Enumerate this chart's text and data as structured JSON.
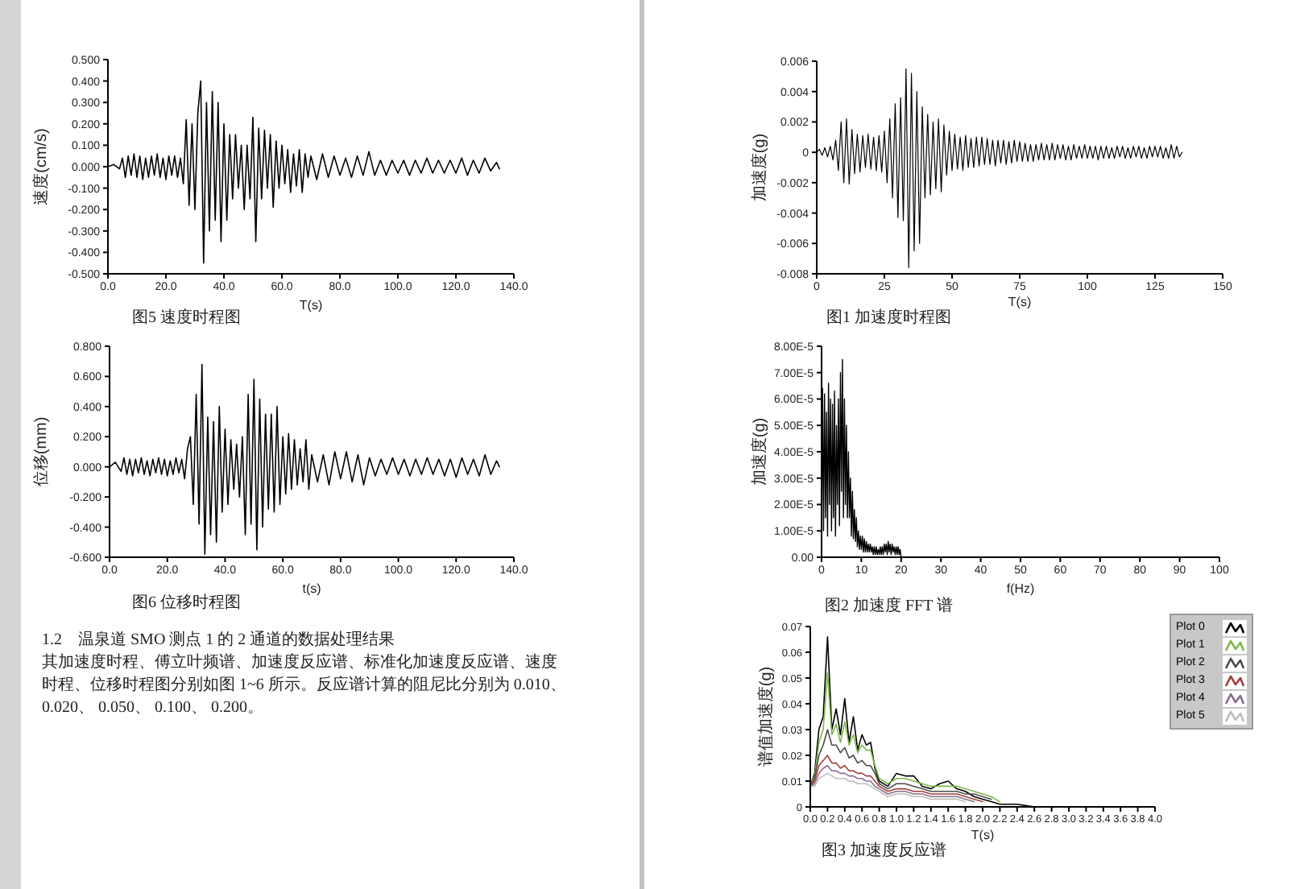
{
  "chart_data": [
    {
      "type": "line",
      "title": "图5 速度时程图",
      "xlabel": "T(s)",
      "ylabel": "速度(cm/s)",
      "xlim": [
        0,
        140
      ],
      "ylim": [
        -0.5,
        0.5
      ],
      "xticks": [
        {
          "value": 0,
          "label": "0.0"
        },
        {
          "value": 20,
          "label": "20.0"
        },
        {
          "value": 40,
          "label": "40.0"
        },
        {
          "value": 60,
          "label": "60.0"
        },
        {
          "value": 80,
          "label": "80.0"
        },
        {
          "value": 100,
          "label": "100.0"
        },
        {
          "value": 120,
          "label": "120.0"
        },
        {
          "value": 140,
          "label": "140.0"
        }
      ],
      "yticks": [
        {
          "value": -0.5,
          "label": "-0.500"
        },
        {
          "value": -0.4,
          "label": "-0.400"
        },
        {
          "value": -0.3,
          "label": "-0.300"
        },
        {
          "value": -0.2,
          "label": "-0.200"
        },
        {
          "value": -0.1,
          "label": "-0.100"
        },
        {
          "value": 0,
          "label": "0.000"
        },
        {
          "value": 0.1,
          "label": "0.100"
        },
        {
          "value": 0.2,
          "label": "0.200"
        },
        {
          "value": 0.3,
          "label": "0.300"
        },
        {
          "value": 0.4,
          "label": "0.400"
        },
        {
          "value": 0.5,
          "label": "0.500"
        }
      ],
      "x": [
        0,
        2,
        4,
        5,
        6,
        7,
        8,
        9,
        10,
        11,
        12,
        13,
        14,
        15,
        16,
        17,
        18,
        19,
        20,
        21,
        22,
        23,
        24,
        25,
        26,
        27,
        28,
        29,
        30,
        31,
        32,
        33,
        34,
        35,
        36,
        37,
        38,
        39,
        40,
        41,
        42,
        43,
        44,
        45,
        46,
        47,
        48,
        49,
        50,
        51,
        52,
        53,
        54,
        55,
        56,
        57,
        58,
        59,
        60,
        61,
        62,
        63,
        64,
        65,
        66,
        67,
        68,
        69,
        70,
        72,
        74,
        76,
        78,
        80,
        82,
        84,
        86,
        88,
        90,
        92,
        94,
        96,
        98,
        100,
        102,
        104,
        106,
        108,
        110,
        112,
        114,
        116,
        118,
        120,
        122,
        124,
        126,
        128,
        130,
        132,
        134,
        135
      ],
      "values": [
        0,
        0.01,
        -0.01,
        0.04,
        -0.05,
        0.05,
        -0.04,
        0.06,
        -0.05,
        0.05,
        -0.06,
        0.04,
        -0.05,
        0.05,
        -0.04,
        0.06,
        -0.05,
        0.04,
        -0.06,
        0.05,
        -0.04,
        0.05,
        -0.05,
        0.04,
        -0.08,
        0.22,
        -0.18,
        0.2,
        -0.2,
        0.25,
        0.4,
        -0.45,
        0.3,
        -0.3,
        0.35,
        -0.25,
        0.3,
        -0.35,
        0.2,
        -0.25,
        0.15,
        -0.15,
        0.15,
        -0.1,
        0.1,
        -0.2,
        0.1,
        -0.15,
        0.23,
        -0.35,
        0.18,
        -0.15,
        0.17,
        -0.1,
        0.15,
        -0.19,
        0.12,
        -0.1,
        0.1,
        -0.08,
        0.08,
        -0.12,
        0.06,
        -0.09,
        0.08,
        -0.12,
        0.06,
        -0.05,
        0.05,
        -0.06,
        0.06,
        -0.05,
        0.05,
        -0.04,
        0.04,
        -0.05,
        0.05,
        -0.04,
        0.07,
        -0.04,
        0.03,
        -0.04,
        0.03,
        -0.03,
        0.03,
        -0.04,
        0.03,
        -0.03,
        0.04,
        -0.03,
        0.03,
        -0.03,
        0.03,
        -0.03,
        0.04,
        -0.04,
        0.03,
        -0.03,
        0.04,
        -0.02,
        0.02,
        -0.01
      ],
      "color": "#000000"
    },
    {
      "type": "line",
      "title": "图6 位移时程图",
      "xlabel": "t(s)",
      "ylabel": "位移(mm)",
      "xlim": [
        0,
        140
      ],
      "ylim": [
        -0.6,
        0.8
      ],
      "xticks": [
        {
          "value": 0,
          "label": "0.0"
        },
        {
          "value": 20,
          "label": "20.0"
        },
        {
          "value": 40,
          "label": "40.0"
        },
        {
          "value": 60,
          "label": "60.0"
        },
        {
          "value": 80,
          "label": "80.0"
        },
        {
          "value": 100,
          "label": "100.0"
        },
        {
          "value": 120,
          "label": "120.0"
        },
        {
          "value": 140,
          "label": "140.0"
        }
      ],
      "yticks": [
        {
          "value": -0.6,
          "label": "-0.600"
        },
        {
          "value": -0.4,
          "label": "-0.400"
        },
        {
          "value": -0.2,
          "label": "-0.200"
        },
        {
          "value": 0,
          "label": "0.000"
        },
        {
          "value": 0.2,
          "label": "0.200"
        },
        {
          "value": 0.4,
          "label": "0.400"
        },
        {
          "value": 0.6,
          "label": "0.600"
        },
        {
          "value": 0.8,
          "label": "0.800"
        }
      ],
      "x": [
        0,
        2,
        4,
        5,
        6,
        7,
        8,
        9,
        10,
        11,
        12,
        13,
        14,
        15,
        16,
        17,
        18,
        19,
        20,
        21,
        22,
        23,
        24,
        25,
        26,
        27,
        28,
        29,
        30,
        31,
        32,
        33,
        34,
        35,
        36,
        37,
        38,
        39,
        40,
        41,
        42,
        43,
        44,
        45,
        46,
        47,
        48,
        49,
        50,
        51,
        52,
        53,
        54,
        55,
        56,
        57,
        58,
        59,
        60,
        61,
        62,
        63,
        64,
        65,
        66,
        67,
        68,
        69,
        70,
        72,
        74,
        76,
        78,
        80,
        82,
        84,
        86,
        88,
        90,
        92,
        94,
        96,
        98,
        100,
        102,
        104,
        106,
        108,
        110,
        112,
        114,
        116,
        118,
        120,
        122,
        124,
        126,
        128,
        130,
        132,
        134,
        135
      ],
      "values": [
        0,
        0.03,
        -0.03,
        0.06,
        -0.05,
        0.05,
        -0.06,
        0.05,
        -0.04,
        0.06,
        -0.05,
        0.04,
        -0.06,
        0.05,
        -0.04,
        0.06,
        -0.05,
        0.05,
        -0.06,
        0.04,
        -0.05,
        0.06,
        -0.04,
        0.05,
        -0.08,
        0.12,
        0.2,
        -0.25,
        0.48,
        -0.38,
        0.68,
        -0.58,
        0.33,
        -0.45,
        0.3,
        -0.5,
        0.4,
        -0.3,
        0.25,
        -0.25,
        0.18,
        -0.15,
        0.15,
        -0.2,
        0.2,
        -0.45,
        0.48,
        -0.38,
        0.58,
        -0.55,
        0.45,
        -0.4,
        0.35,
        -0.28,
        0.35,
        -0.3,
        0.4,
        -0.25,
        0.2,
        -0.18,
        0.22,
        -0.15,
        0.18,
        -0.12,
        0.12,
        -0.1,
        0.18,
        -0.15,
        0.08,
        -0.1,
        0.08,
        -0.12,
        0.1,
        -0.08,
        0.1,
        -0.1,
        0.08,
        -0.12,
        0.06,
        -0.06,
        0.05,
        -0.05,
        0.06,
        -0.05,
        0.05,
        -0.06,
        0.05,
        -0.05,
        0.06,
        -0.05,
        0.05,
        -0.06,
        0.05,
        -0.07,
        0.06,
        -0.05,
        0.05,
        -0.06,
        0.08,
        -0.05,
        0.04,
        0
      ],
      "color": "#000000"
    },
    {
      "type": "other",
      "title": "1.2　温泉道 SMO 测点 1 的 2 通道的数据处理结果",
      "annotations": [
        "其加速度时程、傅立叶频谱、加速度反应谱、标准化加速度反应谱、速度时程、位移时程图分别如图 1~6 所示。反应谱计算的阻尼比分别为 0.010、0.020、 0.050、 0.100、 0.200。"
      ]
    },
    {
      "type": "line",
      "title": "图1 加速度时程图",
      "xlabel": "T(s)",
      "ylabel": "加速度(g)",
      "xlim": [
        0,
        150
      ],
      "ylim": [
        -0.008,
        0.006
      ],
      "xticks": [
        0,
        25,
        50,
        75,
        100,
        125,
        150
      ],
      "yticks": [
        -0.008,
        -0.006,
        -0.004,
        -0.002,
        0,
        0.002,
        0.004,
        0.006
      ],
      "x": [
        0,
        1,
        2,
        3,
        4,
        5,
        6,
        7,
        8,
        9,
        10,
        11,
        12,
        13,
        14,
        15,
        16,
        17,
        18,
        19,
        20,
        21,
        22,
        23,
        24,
        25,
        26,
        27,
        28,
        29,
        30,
        31,
        32,
        33,
        34,
        35,
        36,
        37,
        38,
        39,
        40,
        41,
        42,
        43,
        44,
        45,
        46,
        47,
        48,
        49,
        50,
        51,
        52,
        53,
        54,
        55,
        56,
        57,
        58,
        59,
        60,
        61,
        62,
        63,
        64,
        65,
        66,
        67,
        68,
        69,
        70,
        71,
        72,
        73,
        74,
        75,
        76,
        77,
        78,
        79,
        80,
        81,
        82,
        83,
        84,
        85,
        86,
        87,
        88,
        89,
        90,
        91,
        92,
        93,
        94,
        95,
        96,
        97,
        98,
        99,
        100,
        101,
        102,
        103,
        104,
        105,
        106,
        107,
        108,
        109,
        110,
        111,
        112,
        113,
        114,
        115,
        116,
        117,
        118,
        119,
        120,
        121,
        122,
        123,
        124,
        125,
        126,
        127,
        128,
        129,
        130,
        131,
        132,
        133,
        134,
        135
      ],
      "values": [
        0,
        0.0002,
        -0.0002,
        0.0003,
        -0.0003,
        0.0004,
        -0.0005,
        0.0008,
        -0.0012,
        0.002,
        -0.002,
        0.0022,
        -0.0021,
        0.0015,
        -0.0014,
        0.0012,
        -0.0013,
        0.0011,
        -0.001,
        0.0012,
        -0.0011,
        0.001,
        -0.0012,
        0.0011,
        -0.0013,
        0.0014,
        -0.002,
        0.0022,
        -0.003,
        0.0032,
        -0.0043,
        0.0036,
        -0.0045,
        0.0055,
        -0.0076,
        0.0052,
        -0.0065,
        0.004,
        -0.006,
        0.003,
        -0.003,
        0.0025,
        -0.0028,
        0.002,
        -0.0024,
        0.0022,
        -0.0026,
        0.0018,
        -0.0015,
        0.0014,
        -0.0012,
        0.0012,
        -0.0011,
        0.001,
        -0.0012,
        0.0011,
        -0.001,
        0.0009,
        -0.001,
        0.001,
        -0.0009,
        0.001,
        -0.0008,
        0.0009,
        -0.0008,
        0.0008,
        -0.0009,
        0.0008,
        -0.0007,
        0.0008,
        -0.0008,
        0.0007,
        -0.0007,
        0.0008,
        -0.0006,
        0.0007,
        -0.0006,
        0.0006,
        -0.0006,
        0.0005,
        -0.0006,
        0.0005,
        -0.0005,
        0.0006,
        -0.0005,
        0.0005,
        -0.0005,
        0.0006,
        -0.0005,
        0.0005,
        -0.0004,
        0.0005,
        -0.0005,
        0.0004,
        -0.0005,
        0.0005,
        -0.0004,
        0.0004,
        -0.0004,
        0.0005,
        -0.0004,
        0.0004,
        -0.0004,
        0.0004,
        -0.0005,
        0.0004,
        -0.0004,
        0.0004,
        -0.0004,
        0.0003,
        -0.0004,
        0.0004,
        -0.0003,
        0.0004,
        -0.0004,
        0.0003,
        -0.0004,
        0.0004,
        -0.0003,
        0.0004,
        -0.0004,
        0.0003,
        -0.0004,
        0.0004,
        -0.0003,
        0.0004,
        -0.0003,
        0.0004,
        -0.0004,
        0.0003,
        -0.0004,
        0.0005,
        -0.0004,
        0.0004,
        -0.0003,
        0
      ],
      "color": "#000000"
    },
    {
      "type": "line",
      "title": "图2 加速度 FFT 谱",
      "xlabel": "f(Hz)",
      "ylabel": "加速度(g)",
      "xlim": [
        0,
        100
      ],
      "ylim": [
        0,
        8e-05
      ],
      "xticks": [
        0,
        10,
        20,
        30,
        40,
        50,
        60,
        70,
        80,
        90,
        100
      ],
      "yticks": [
        {
          "value": 0,
          "label": "0.00"
        },
        {
          "value": 1e-05,
          "label": "1.00E-5"
        },
        {
          "value": 2e-05,
          "label": "2.00E-5"
        },
        {
          "value": 3e-05,
          "label": "3.00E-5"
        },
        {
          "value": 4e-05,
          "label": "4.00E-5"
        },
        {
          "value": 5e-05,
          "label": "5.00E-5"
        },
        {
          "value": 6e-05,
          "label": "6.00E-5"
        },
        {
          "value": 7e-05,
          "label": "7.00E-5"
        },
        {
          "value": 8e-05,
          "label": "8.00E-5"
        }
      ],
      "x": [
        0,
        0.25,
        0.5,
        0.75,
        1,
        1.25,
        1.5,
        1.75,
        2,
        2.25,
        2.5,
        2.75,
        3,
        3.25,
        3.5,
        3.75,
        4,
        4.25,
        4.5,
        4.75,
        5,
        5.25,
        5.5,
        5.75,
        6,
        6.25,
        6.5,
        6.75,
        7,
        7.25,
        7.5,
        7.75,
        8,
        8.25,
        8.5,
        8.75,
        9,
        9.25,
        9.5,
        9.75,
        10,
        10.25,
        10.5,
        10.75,
        11,
        11.25,
        11.5,
        11.75,
        12,
        12.25,
        12.5,
        12.75,
        13,
        13.25,
        13.5,
        13.75,
        14,
        14.25,
        14.5,
        14.75,
        15,
        15.25,
        15.5,
        15.75,
        16,
        16.25,
        16.5,
        16.75,
        17,
        17.25,
        17.5,
        17.75,
        18,
        18.25,
        18.5,
        18.75,
        19,
        19.25,
        19.5,
        19.75,
        20
      ],
      "values": [
        5e-06,
        6.4e-05,
        1e-05,
        6.2e-05,
        1.5e-05,
        5.5e-05,
        8e-06,
        6.6e-05,
        2e-05,
        6e-05,
        1e-05,
        5.8e-05,
        1.5e-05,
        6.3e-05,
        8e-06,
        5e-05,
        2e-05,
        6e-05,
        1.2e-05,
        7e-05,
        2.5e-05,
        7.5e-05,
        1.5e-05,
        6e-05,
        2e-05,
        5e-05,
        1.5e-05,
        4e-05,
        1.5e-05,
        3e-05,
        8e-06,
        2.5e-05,
        7e-06,
        1.8e-05,
        6e-06,
        1.5e-05,
        4e-06,
        1e-05,
        3e-06,
        8e-06,
        3e-06,
        8e-06,
        2e-06,
        7e-06,
        2e-06,
        6e-06,
        2e-06,
        5e-06,
        2e-06,
        5e-06,
        2e-06,
        4e-06,
        1e-06,
        4e-06,
        1e-06,
        4e-06,
        1e-06,
        3e-06,
        1e-06,
        4e-06,
        1e-06,
        4e-06,
        1e-06,
        5e-06,
        2e-06,
        5e-06,
        1e-06,
        6e-06,
        2e-06,
        5e-06,
        1e-06,
        5e-06,
        2e-06,
        4e-06,
        1e-06,
        4e-06,
        1e-06,
        4e-06,
        1e-06,
        3e-06,
        0
      ],
      "color": "#000000"
    },
    {
      "type": "line",
      "title": "图3 加速度反应谱",
      "xlabel": "T(s)",
      "ylabel": "谱值加速度(g)",
      "xlim": [
        0,
        4
      ],
      "ylim": [
        0,
        0.07
      ],
      "legend": "top right",
      "xticks": [
        {
          "value": 0,
          "label": "0.0"
        },
        0.2,
        0.4,
        0.6,
        0.8,
        {
          "value": 1,
          "label": "1.0"
        },
        1.2,
        1.4,
        1.6,
        1.8,
        {
          "value": 2,
          "label": "2.0"
        },
        2.2,
        2.4,
        2.6,
        2.8,
        {
          "value": 3,
          "label": "3.0"
        },
        3.2,
        3.4,
        3.6,
        3.8,
        {
          "value": 4,
          "label": "4.0"
        }
      ],
      "yticks": [
        0,
        0.01,
        0.02,
        0.03,
        0.04,
        0.05,
        0.06,
        0.07
      ],
      "x": [
        0,
        0.05,
        0.1,
        0.15,
        0.2,
        0.25,
        0.3,
        0.35,
        0.4,
        0.45,
        0.5,
        0.55,
        0.6,
        0.65,
        0.7,
        0.75,
        0.8,
        0.9,
        1.0,
        1.1,
        1.2,
        1.3,
        1.4,
        1.5,
        1.6,
        1.7,
        1.8,
        1.9,
        2.0,
        2.1,
        2.2,
        2.4,
        2.6,
        3.0,
        3.5,
        4.0
      ],
      "series": [
        {
          "name": "Plot 0",
          "color": "#000000",
          "values": [
            0.008,
            0.013,
            0.03,
            0.035,
            0.066,
            0.03,
            0.038,
            0.028,
            0.042,
            0.025,
            0.035,
            0.022,
            0.028,
            0.024,
            0.025,
            0.015,
            0.01,
            0.008,
            0.013,
            0.012,
            0.012,
            0.008,
            0.007,
            0.009,
            0.01,
            0.007,
            0.006,
            0.004,
            0.003,
            0.002,
            0.001,
            0.001,
            0,
            0,
            0,
            0
          ]
        },
        {
          "name": "Plot 1",
          "color": "#7fb84a",
          "values": [
            0.008,
            0.012,
            0.025,
            0.03,
            0.052,
            0.028,
            0.032,
            0.025,
            0.033,
            0.024,
            0.028,
            0.021,
            0.024,
            0.022,
            0.022,
            0.016,
            0.011,
            0.009,
            0.011,
            0.011,
            0.01,
            0.009,
            0.008,
            0.008,
            0.008,
            0.008,
            0.007,
            0.006,
            0.005,
            0.004,
            0.002,
            null,
            null,
            null,
            null,
            null
          ]
        },
        {
          "name": "Plot 2",
          "color": "#4d4d4d",
          "values": [
            0.008,
            0.011,
            0.02,
            0.024,
            0.03,
            0.024,
            0.024,
            0.021,
            0.023,
            0.019,
            0.02,
            0.017,
            0.018,
            0.016,
            0.016,
            0.013,
            0.009,
            0.007,
            0.009,
            0.009,
            0.008,
            0.007,
            0.006,
            0.006,
            0.006,
            0.006,
            0.005,
            0.005,
            0.004,
            0.003,
            null,
            null,
            null,
            null,
            null,
            null
          ]
        },
        {
          "name": "Plot 3",
          "color": "#a0403c",
          "values": [
            0.008,
            0.01,
            0.016,
            0.018,
            0.02,
            0.017,
            0.017,
            0.015,
            0.016,
            0.014,
            0.014,
            0.013,
            0.013,
            0.012,
            0.012,
            0.01,
            0.008,
            0.006,
            0.007,
            0.007,
            0.006,
            0.006,
            0.005,
            0.005,
            0.005,
            0.005,
            0.004,
            0.003,
            0.002,
            null,
            null,
            null,
            null,
            null,
            null,
            null
          ]
        },
        {
          "name": "Plot 4",
          "color": "#8c6d8c",
          "values": [
            0.008,
            0.009,
            0.013,
            0.015,
            0.016,
            0.014,
            0.014,
            0.013,
            0.013,
            0.012,
            0.012,
            0.011,
            0.011,
            0.01,
            0.01,
            0.008,
            0.007,
            0.005,
            0.006,
            0.006,
            0.005,
            0.005,
            0.004,
            0.004,
            0.004,
            0.004,
            0.003,
            0.002,
            null,
            null,
            null,
            null,
            null,
            null,
            null,
            null
          ]
        },
        {
          "name": "Plot 5",
          "color": "#bdbdbd",
          "values": [
            0.008,
            0.008,
            0.011,
            0.012,
            0.013,
            0.012,
            0.011,
            0.011,
            0.011,
            0.01,
            0.01,
            0.009,
            0.009,
            0.009,
            0.008,
            0.007,
            0.006,
            0.004,
            0.005,
            0.005,
            0.004,
            0.004,
            0.003,
            0.003,
            0.003,
            0.003,
            0.002,
            null,
            null,
            null,
            null,
            null,
            null,
            null,
            null,
            null
          ]
        }
      ]
    }
  ]
}
